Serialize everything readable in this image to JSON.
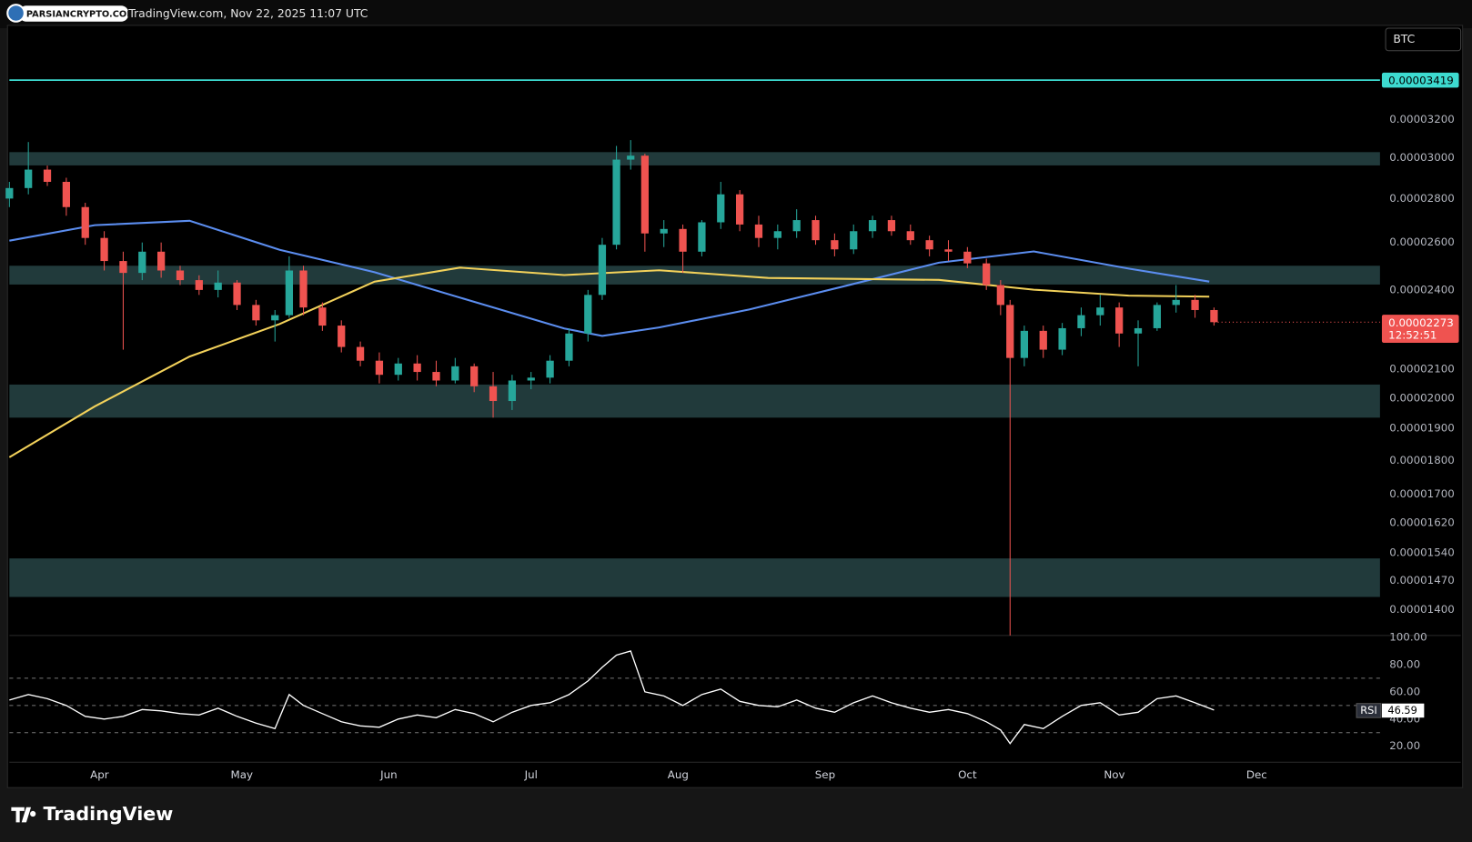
{
  "header": {
    "watermark": "PARSIANCRYPTO.COM",
    "source": "TradingView.com, Nov 22, 2025 11:07 UTC"
  },
  "footer": {
    "logo": "TradingView"
  },
  "chart_data": {
    "type": "candlestick",
    "symbol": "BTC",
    "log_scale": true,
    "up_color": "#26a69a",
    "down_color": "#ef5350",
    "zone_color": "#213a3b",
    "x": [
      72,
      76,
      80,
      84,
      88,
      92,
      96,
      100,
      104,
      108,
      112,
      116,
      120,
      124,
      128,
      131,
      134,
      138,
      142,
      146,
      150,
      154,
      158,
      162,
      166,
      170,
      174,
      178,
      182,
      186,
      190,
      194,
      197,
      200,
      203,
      206,
      210,
      214,
      218,
      222,
      226,
      230,
      234,
      238,
      242,
      246,
      250,
      254,
      258,
      262,
      266,
      270,
      274,
      278,
      281,
      283,
      286,
      290,
      294,
      298,
      302,
      306,
      310,
      314,
      318,
      322,
      326
    ],
    "open": [
      2.8e-05,
      2.85e-05,
      2.94e-05,
      2.88e-05,
      2.76e-05,
      2.62e-05,
      2.52e-05,
      2.47e-05,
      2.56e-05,
      2.48e-05,
      2.44e-05,
      2.4e-05,
      2.43e-05,
      2.34e-05,
      2.28e-05,
      2.3e-05,
      2.48e-05,
      2.33e-05,
      2.26e-05,
      2.18e-05,
      2.13e-05,
      2.08e-05,
      2.12e-05,
      2.09e-05,
      2.06e-05,
      2.11e-05,
      2.04e-05,
      1.99e-05,
      2.06e-05,
      2.07e-05,
      2.13e-05,
      2.23e-05,
      2.38e-05,
      2.59e-05,
      2.99e-05,
      3.01e-05,
      2.64e-05,
      2.66e-05,
      2.56e-05,
      2.69e-05,
      2.82e-05,
      2.68e-05,
      2.62e-05,
      2.65e-05,
      2.7e-05,
      2.61e-05,
      2.57e-05,
      2.65e-05,
      2.7e-05,
      2.65e-05,
      2.61e-05,
      2.57e-05,
      2.56e-05,
      2.51e-05,
      2.42e-05,
      2.34e-05,
      2.14e-05,
      2.24e-05,
      2.17e-05,
      2.25e-05,
      2.3e-05,
      2.33e-05,
      2.23e-05,
      2.25e-05,
      2.34e-05,
      2.36e-05,
      2.32e-05
    ],
    "high": [
      2.88e-05,
      3.08e-05,
      2.96e-05,
      2.9e-05,
      2.78e-05,
      2.65e-05,
      2.56e-05,
      2.6e-05,
      2.6e-05,
      2.5e-05,
      2.46e-05,
      2.48e-05,
      2.44e-05,
      2.36e-05,
      2.32e-05,
      2.54e-05,
      2.5e-05,
      2.35e-05,
      2.28e-05,
      2.2e-05,
      2.16e-05,
      2.14e-05,
      2.15e-05,
      2.13e-05,
      2.14e-05,
      2.12e-05,
      2.09e-05,
      2.08e-05,
      2.09e-05,
      2.15e-05,
      2.25e-05,
      2.4e-05,
      2.62e-05,
      3.06e-05,
      3.09e-05,
      3.02e-05,
      2.7e-05,
      2.68e-05,
      2.7e-05,
      2.88e-05,
      2.84e-05,
      2.72e-05,
      2.68e-05,
      2.75e-05,
      2.72e-05,
      2.64e-05,
      2.68e-05,
      2.72e-05,
      2.72e-05,
      2.68e-05,
      2.63e-05,
      2.61e-05,
      2.58e-05,
      2.53e-05,
      2.44e-05,
      2.36e-05,
      2.26e-05,
      2.26e-05,
      2.27e-05,
      2.33e-05,
      2.38e-05,
      2.35e-05,
      2.28e-05,
      2.35e-05,
      2.42e-05,
      2.38e-05,
      2.33e-05
    ],
    "low": [
      2.76e-05,
      2.82e-05,
      2.86e-05,
      2.72e-05,
      2.59e-05,
      2.48e-05,
      2.17e-05,
      2.44e-05,
      2.45e-05,
      2.42e-05,
      2.38e-05,
      2.37e-05,
      2.32e-05,
      2.26e-05,
      2.2e-05,
      2.29e-05,
      2.3e-05,
      2.24e-05,
      2.16e-05,
      2.11e-05,
      2.05e-05,
      2.06e-05,
      2.06e-05,
      2.04e-05,
      2.05e-05,
      2.02e-05,
      1.935e-05,
      1.96e-05,
      2.03e-05,
      2.05e-05,
      2.11e-05,
      2.2e-05,
      2.36e-05,
      2.57e-05,
      2.94e-05,
      2.56e-05,
      2.58e-05,
      2.47e-05,
      2.54e-05,
      2.66e-05,
      2.65e-05,
      2.58e-05,
      2.57e-05,
      2.62e-05,
      2.59e-05,
      2.54e-05,
      2.55e-05,
      2.62e-05,
      2.63e-05,
      2.59e-05,
      2.54e-05,
      2.52e-05,
      2.49e-05,
      2.4e-05,
      2.3e-05,
      1.34e-05,
      2.11e-05,
      2.14e-05,
      2.15e-05,
      2.22e-05,
      2.26e-05,
      2.18e-05,
      2.11e-05,
      2.24e-05,
      2.31e-05,
      2.29e-05,
      2.26e-05
    ],
    "close": [
      2.85e-05,
      2.94e-05,
      2.88e-05,
      2.76e-05,
      2.62e-05,
      2.52e-05,
      2.47e-05,
      2.56e-05,
      2.48e-05,
      2.44e-05,
      2.4e-05,
      2.43e-05,
      2.34e-05,
      2.28e-05,
      2.3e-05,
      2.48e-05,
      2.33e-05,
      2.26e-05,
      2.18e-05,
      2.13e-05,
      2.08e-05,
      2.12e-05,
      2.09e-05,
      2.06e-05,
      2.11e-05,
      2.04e-05,
      1.99e-05,
      2.06e-05,
      2.07e-05,
      2.13e-05,
      2.23e-05,
      2.38e-05,
      2.59e-05,
      2.99e-05,
      3.01e-05,
      2.64e-05,
      2.66e-05,
      2.56e-05,
      2.69e-05,
      2.82e-05,
      2.68e-05,
      2.62e-05,
      2.65e-05,
      2.7e-05,
      2.61e-05,
      2.57e-05,
      2.65e-05,
      2.7e-05,
      2.65e-05,
      2.61e-05,
      2.57e-05,
      2.56e-05,
      2.51e-05,
      2.42e-05,
      2.34e-05,
      2.14e-05,
      2.24e-05,
      2.17e-05,
      2.25e-05,
      2.3e-05,
      2.33e-05,
      2.23e-05,
      2.25e-05,
      2.34e-05,
      2.36e-05,
      2.32e-05,
      2.273e-05
    ],
    "countdown": "12:52:51",
    "moving_averages": [
      {
        "color": "#5b8def",
        "x": [
          72,
          90,
          110,
          129,
          149,
          169,
          189,
          197,
          209,
          228,
          248,
          268,
          288,
          308,
          325
        ],
        "values": [
          2.608e-05,
          2.677e-05,
          2.697e-05,
          2.568e-05,
          2.473e-05,
          2.358e-05,
          2.249e-05,
          2.221e-05,
          2.253e-05,
          2.322e-05,
          2.415e-05,
          2.513e-05,
          2.561e-05,
          2.488e-05,
          2.434e-05
        ]
      },
      {
        "color": "#f2d15a",
        "x": [
          72,
          90,
          110,
          129,
          149,
          167,
          189,
          209,
          232,
          268,
          288,
          308,
          325
        ],
        "values": [
          1.81e-05,
          1.972e-05,
          2.145e-05,
          2.266e-05,
          2.434e-05,
          2.492e-05,
          2.461e-05,
          2.481e-05,
          2.449e-05,
          2.441e-05,
          2.401e-05,
          2.377e-05,
          2.373e-05
        ]
      }
    ],
    "hlines": [
      {
        "value": 3.419e-05,
        "color": "#3ddbd0"
      }
    ],
    "zones": [
      [
        2.961e-05,
        3.028e-05
      ],
      [
        2.422e-05,
        2.5e-05
      ],
      [
        1.935e-05,
        2.046e-05
      ],
      [
        1.43e-05,
        1.526e-05
      ]
    ],
    "xlim": [
      72,
      361
    ],
    "xticks": [
      {
        "value": 91,
        "label": "Apr"
      },
      {
        "value": 121,
        "label": "May"
      },
      {
        "value": 152,
        "label": "Jun"
      },
      {
        "value": 182,
        "label": "Jul"
      },
      {
        "value": 213,
        "label": "Aug"
      },
      {
        "value": 244,
        "label": "Sep"
      },
      {
        "value": 274,
        "label": "Oct"
      },
      {
        "value": 305,
        "label": "Nov"
      },
      {
        "value": 335,
        "label": "Dec"
      }
    ],
    "ylim": [
      1.34e-05,
      3.75e-05
    ],
    "yticks": [
      {
        "value": 3.2e-05,
        "label": "0.00003200"
      },
      {
        "value": 3e-05,
        "label": "0.00003000"
      },
      {
        "value": 2.8e-05,
        "label": "0.00002800"
      },
      {
        "value": 2.6e-05,
        "label": "0.00002600"
      },
      {
        "value": 2.4e-05,
        "label": "0.00002400"
      },
      {
        "value": 2.1e-05,
        "label": "0.00002100"
      },
      {
        "value": 2e-05,
        "label": "0.00002000"
      },
      {
        "value": 1.9e-05,
        "label": "0.00001900"
      },
      {
        "value": 1.8e-05,
        "label": "0.00001800"
      },
      {
        "value": 1.7e-05,
        "label": "0.00001700"
      },
      {
        "value": 1.62e-05,
        "label": "0.00001620"
      },
      {
        "value": 1.54e-05,
        "label": "0.00001540"
      },
      {
        "value": 1.47e-05,
        "label": "0.00001470"
      },
      {
        "value": 1.4e-05,
        "label": "0.00001400"
      }
    ],
    "rsi": {
      "name": "RSI",
      "color": "#ffffff",
      "values": [
        54,
        58,
        55,
        50,
        42,
        40,
        42,
        47,
        46,
        44,
        43,
        48,
        42,
        37,
        33,
        58,
        50,
        44,
        38,
        35,
        34,
        40,
        43,
        41,
        47,
        44,
        38,
        45,
        50,
        52,
        58,
        68,
        78,
        87,
        90,
        60,
        57,
        50,
        58,
        62,
        53,
        50,
        49,
        54,
        48,
        45,
        52,
        57,
        52,
        48,
        45,
        47,
        44,
        38,
        32,
        22,
        36,
        33,
        42,
        50,
        52,
        43,
        45,
        55,
        57,
        52,
        46.59
      ],
      "levels": [
        70,
        50,
        30
      ],
      "ylim": [
        8.3,
        101.4
      ],
      "yticks": [
        {
          "value": 100,
          "label": "100.00"
        },
        {
          "value": 80,
          "label": "80.00"
        },
        {
          "value": 60,
          "label": "60.00"
        },
        {
          "value": 40,
          "label": "40.00"
        },
        {
          "value": 20,
          "label": "20.00"
        }
      ]
    }
  }
}
